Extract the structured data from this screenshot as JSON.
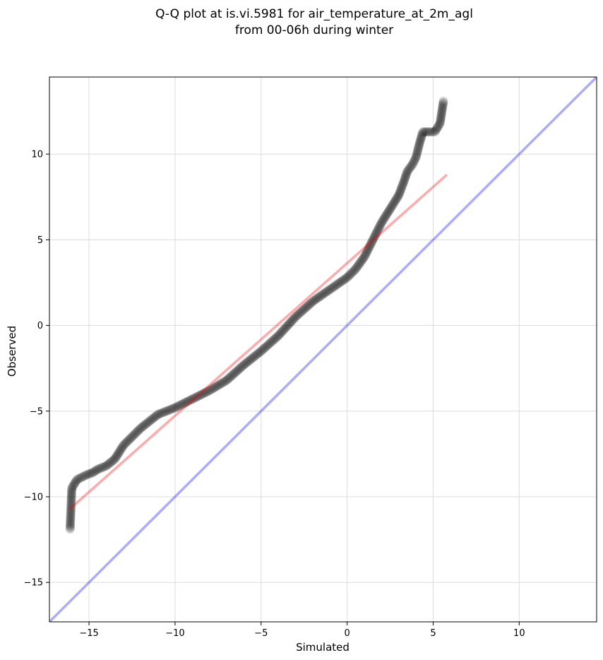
{
  "chart_data": {
    "type": "scatter",
    "title": [
      "Q-Q plot at is.vi.5981 for air_temperature_at_2m_agl",
      "from 00-06h during winter"
    ],
    "xlabel": "Simulated",
    "ylabel": "Observed",
    "xlim": [
      -17.3,
      14.5
    ],
    "ylim": [
      -17.3,
      14.5
    ],
    "xticks": [
      -15,
      -10,
      -5,
      0,
      5,
      10
    ],
    "yticks": [
      -15,
      -10,
      -5,
      0,
      5,
      10
    ],
    "xtick_labels": [
      "−15",
      "−10",
      "−5",
      "0",
      "5",
      "10"
    ],
    "ytick_labels": [
      "−15",
      "−10",
      "−5",
      "0",
      "5",
      "10"
    ],
    "grid": true,
    "series": [
      {
        "kind": "points",
        "color": "#000000",
        "curve": [
          [
            -16.1,
            -11.9
          ],
          [
            -16.0,
            -9.5
          ],
          [
            -15.7,
            -9.0
          ],
          [
            -15.5,
            -8.9
          ],
          [
            -15.1,
            -8.7
          ],
          [
            -14.8,
            -8.6
          ],
          [
            -14.5,
            -8.4
          ],
          [
            -14.0,
            -8.2
          ],
          [
            -13.5,
            -7.8
          ],
          [
            -13.0,
            -7.0
          ],
          [
            -12.5,
            -6.5
          ],
          [
            -12.0,
            -6.0
          ],
          [
            -11.5,
            -5.6
          ],
          [
            -11.0,
            -5.2
          ],
          [
            -10.5,
            -5.0
          ],
          [
            -10.0,
            -4.8
          ],
          [
            -9.0,
            -4.3
          ],
          [
            -8.0,
            -3.8
          ],
          [
            -7.0,
            -3.2
          ],
          [
            -6.0,
            -2.3
          ],
          [
            -5.0,
            -1.5
          ],
          [
            -4.0,
            -0.6
          ],
          [
            -3.0,
            0.5
          ],
          [
            -2.0,
            1.4
          ],
          [
            -1.0,
            2.1
          ],
          [
            0.0,
            2.8
          ],
          [
            0.5,
            3.3
          ],
          [
            1.0,
            4.0
          ],
          [
            1.5,
            5.0
          ],
          [
            2.0,
            6.0
          ],
          [
            2.5,
            6.8
          ],
          [
            3.0,
            7.6
          ],
          [
            3.3,
            8.4
          ],
          [
            3.5,
            9.0
          ],
          [
            3.8,
            9.4
          ],
          [
            4.0,
            9.8
          ],
          [
            4.2,
            10.6
          ],
          [
            4.4,
            11.3
          ],
          [
            4.7,
            11.3
          ],
          [
            5.1,
            11.3
          ],
          [
            5.4,
            11.8
          ],
          [
            5.6,
            13.1
          ]
        ]
      },
      {
        "kind": "line",
        "color": "#ff0000",
        "x": [
          -16.1,
          5.8
        ],
        "y": [
          -10.7,
          8.8
        ]
      },
      {
        "kind": "line",
        "color": "#0000ff",
        "x": [
          -17.3,
          14.5
        ],
        "y": [
          -17.3,
          14.5
        ]
      }
    ]
  }
}
